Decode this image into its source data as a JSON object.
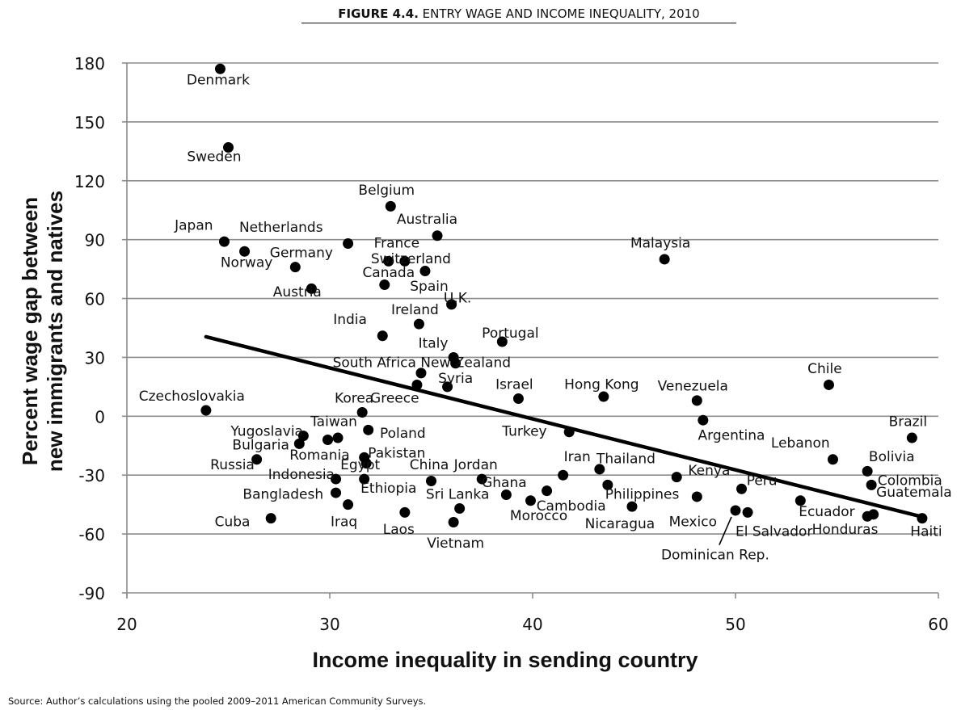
{
  "figure": {
    "number": "FIGURE 4.4.",
    "title": "ENTRY WAGE AND INCOME INEQUALITY, 2010",
    "source": "Source: Author’s calculations using the pooled 2009–2011 American Community Surveys."
  },
  "chart_data": {
    "type": "scatter",
    "xlabel": "Income inequality in sending country",
    "ylabel_lines": [
      "Percent wage gap between",
      "new immigrants and natives"
    ],
    "xlim": [
      20,
      60
    ],
    "ylim": [
      -90,
      180
    ],
    "xticks": [
      20,
      30,
      40,
      50,
      60
    ],
    "yticks": [
      180,
      150,
      120,
      90,
      60,
      30,
      0,
      -30,
      -60,
      -90
    ],
    "grid": "horizontal",
    "fit_line": {
      "x": [
        23.9,
        59.1
      ],
      "y": [
        40.5,
        -51
      ]
    },
    "points": [
      {
        "label": "Denmark",
        "x": 24.6,
        "y": 177,
        "lx": 24.5,
        "ly": 169
      },
      {
        "label": "Sweden",
        "x": 25.0,
        "y": 137,
        "lx": 24.3,
        "ly": 130
      },
      {
        "label": "Japan",
        "x": 24.8,
        "y": 89,
        "lx": 23.3,
        "ly": 95
      },
      {
        "label": "Norway",
        "x": 25.8,
        "y": 84,
        "lx": 25.9,
        "ly": 76
      },
      {
        "label": "Netherlands",
        "x": 30.9,
        "y": 88,
        "lx": 27.6,
        "ly": 94
      },
      {
        "label": "Germany",
        "x": 28.3,
        "y": 76,
        "lx": 28.6,
        "ly": 81
      },
      {
        "label": "Austria",
        "x": 29.1,
        "y": 65,
        "lx": 28.4,
        "ly": 61
      },
      {
        "label": "Belgium",
        "x": 33.0,
        "y": 107,
        "lx": 32.8,
        "ly": 113
      },
      {
        "label": "Australia",
        "x": 35.3,
        "y": 92,
        "lx": 34.8,
        "ly": 98
      },
      {
        "label": "France",
        "x": 32.9,
        "y": 79,
        "lx": 33.3,
        "ly": 86
      },
      {
        "label": "Switzerland",
        "x": 33.7,
        "y": 79,
        "lx": 34.0,
        "ly": 78
      },
      {
        "label": "Canada",
        "x": 32.7,
        "y": 67,
        "lx": 32.9,
        "ly": 71
      },
      {
        "label": "Spain",
        "x": 34.7,
        "y": 74,
        "lx": 34.9,
        "ly": 64
      },
      {
        "label": "U.K.",
        "x": 36.0,
        "y": 57,
        "lx": 36.3,
        "ly": 58
      },
      {
        "label": "Ireland",
        "x": 34.4,
        "y": 47,
        "lx": 34.2,
        "ly": 52
      },
      {
        "label": "India",
        "x": 32.6,
        "y": 41,
        "lx": 31.0,
        "ly": 47
      },
      {
        "label": "Portugal",
        "x": 38.5,
        "y": 38,
        "lx": 38.9,
        "ly": 40
      },
      {
        "label": "Italy",
        "x": 36.1,
        "y": 30,
        "lx": 35.1,
        "ly": 35
      },
      {
        "label": "New Zealand",
        "x": 36.2,
        "y": 27,
        "lx": 36.7,
        "ly": 25
      },
      {
        "label": "South Africa",
        "x": 34.5,
        "y": 22,
        "lx": 32.2,
        "ly": 25
      },
      {
        "label": "Syria",
        "x": 35.8,
        "y": 15,
        "lx": 36.2,
        "ly": 17
      },
      {
        "label": "Greece",
        "x": 34.3,
        "y": 16,
        "lx": 33.2,
        "ly": 7
      },
      {
        "label": "Israel",
        "x": 39.3,
        "y": 9,
        "lx": 39.1,
        "ly": 14
      },
      {
        "label": "Hong Kong",
        "x": 43.5,
        "y": 10,
        "lx": 43.4,
        "ly": 14
      },
      {
        "label": "Malaysia",
        "x": 46.5,
        "y": 80,
        "lx": 46.3,
        "ly": 86
      },
      {
        "label": "Venezuela",
        "x": 48.1,
        "y": 8,
        "lx": 47.9,
        "ly": 13
      },
      {
        "label": "Chile",
        "x": 54.6,
        "y": 16,
        "lx": 54.4,
        "ly": 22
      },
      {
        "label": "Czechoslovakia",
        "x": 23.9,
        "y": 3,
        "lx": 23.2,
        "ly": 8
      },
      {
        "label": "Korea",
        "x": 31.6,
        "y": 2,
        "lx": 31.2,
        "ly": 7
      },
      {
        "label": "Taiwan",
        "x": 30.4,
        "y": -11,
        "lx": 30.2,
        "ly": -5
      },
      {
        "label": "Yugoslavia",
        "x": 28.7,
        "y": -10,
        "lx": 26.9,
        "ly": -10
      },
      {
        "label": "Poland",
        "x": 31.9,
        "y": -7,
        "lx": 33.6,
        "ly": -11
      },
      {
        "label": "Bulgaria",
        "x": 28.5,
        "y": -14,
        "lx": 26.6,
        "ly": -17
      },
      {
        "label": "Romania",
        "x": 29.9,
        "y": -12,
        "lx": 29.5,
        "ly": -22
      },
      {
        "label": "Pakistan",
        "x": 31.7,
        "y": -21,
        "lx": 33.3,
        "ly": -21
      },
      {
        "label": "Russia",
        "x": 26.4,
        "y": -22,
        "lx": 25.2,
        "ly": -27
      },
      {
        "label": "Egypt",
        "x": 31.8,
        "y": -24,
        "lx": 31.5,
        "ly": -27
      },
      {
        "label": "Indonesia",
        "x": 30.3,
        "y": -32,
        "lx": 28.6,
        "ly": -32
      },
      {
        "label": "Bangladesh",
        "x": 30.3,
        "y": -39,
        "lx": 27.7,
        "ly": -42
      },
      {
        "label": "Ethiopia",
        "x": 31.7,
        "y": -32,
        "lx": 32.9,
        "ly": -39
      },
      {
        "label": "China",
        "x": 35.0,
        "y": -33,
        "lx": 34.9,
        "ly": -27
      },
      {
        "label": "Jordan",
        "x": 37.5,
        "y": -32,
        "lx": 37.2,
        "ly": -27
      },
      {
        "label": "Ghana",
        "x": 38.7,
        "y": -40,
        "lx": 38.6,
        "ly": -36
      },
      {
        "label": "Sri Lanka",
        "x": 36.4,
        "y": -47,
        "lx": 36.3,
        "ly": -42
      },
      {
        "label": "Cuba",
        "x": 27.1,
        "y": -52,
        "lx": 25.2,
        "ly": -56
      },
      {
        "label": "Iraq",
        "x": 30.9,
        "y": -45,
        "lx": 30.7,
        "ly": -56
      },
      {
        "label": "Laos",
        "x": 33.7,
        "y": -49,
        "lx": 33.4,
        "ly": -60
      },
      {
        "label": "Vietnam",
        "x": 36.1,
        "y": -54,
        "lx": 36.2,
        "ly": -67
      },
      {
        "label": "Cambodia",
        "x": 40.7,
        "y": -38,
        "lx": 41.9,
        "ly": -48
      },
      {
        "label": "Morocco",
        "x": 39.9,
        "y": -43,
        "lx": 40.3,
        "ly": -53
      },
      {
        "label": "Turkey",
        "x": 41.8,
        "y": -8,
        "lx": 39.6,
        "ly": -10
      },
      {
        "label": "Iran",
        "x": 41.5,
        "y": -30,
        "lx": 42.2,
        "ly": -23
      },
      {
        "label": "Thailand",
        "x": 43.3,
        "y": -27,
        "lx": 44.6,
        "ly": -24
      },
      {
        "label": "Philippines",
        "x": 43.7,
        "y": -35,
        "lx": 45.4,
        "ly": -42
      },
      {
        "label": "Nicaragua",
        "x": 44.9,
        "y": -46,
        "lx": 44.3,
        "ly": -57
      },
      {
        "label": "Kenya",
        "x": 47.1,
        "y": -31,
        "lx": 48.7,
        "ly": -30
      },
      {
        "label": "Peru",
        "x": 50.3,
        "y": -37,
        "lx": 51.3,
        "ly": -35
      },
      {
        "label": "Mexico",
        "x": 48.1,
        "y": -41,
        "lx": 47.9,
        "ly": -56
      },
      {
        "label": "El Salvador",
        "x": 50.6,
        "y": -49,
        "lx": 51.9,
        "ly": -61
      },
      {
        "label": "Dominican Rep.",
        "x": 50.0,
        "y": -48,
        "lx": 49.0,
        "ly": -73
      },
      {
        "label": "Argentina",
        "x": 48.4,
        "y": -2,
        "lx": 49.8,
        "ly": -12
      },
      {
        "label": "Lebanon",
        "x": 54.8,
        "y": -22,
        "lx": 53.2,
        "ly": -16
      },
      {
        "label": "Ecuador",
        "x": 53.2,
        "y": -43,
        "lx": 54.5,
        "ly": -51
      },
      {
        "label": "Honduras",
        "x": 56.5,
        "y": -51,
        "lx": 55.4,
        "ly": -60
      },
      {
        "label": "Haiti",
        "x": 59.2,
        "y": -52,
        "lx": 59.4,
        "ly": -61
      },
      {
        "label": "Brazil",
        "x": 58.7,
        "y": -11,
        "lx": 58.5,
        "ly": -5
      },
      {
        "label": "Bolivia",
        "x": 56.5,
        "y": -28,
        "lx": 57.7,
        "ly": -23
      },
      {
        "label": "Colombia",
        "x": 56.7,
        "y": -35,
        "lx": 58.6,
        "ly": -35
      },
      {
        "label": "Guatemala",
        "x": 56.8,
        "y": -50,
        "lx": 58.8,
        "ly": -41
      }
    ]
  }
}
